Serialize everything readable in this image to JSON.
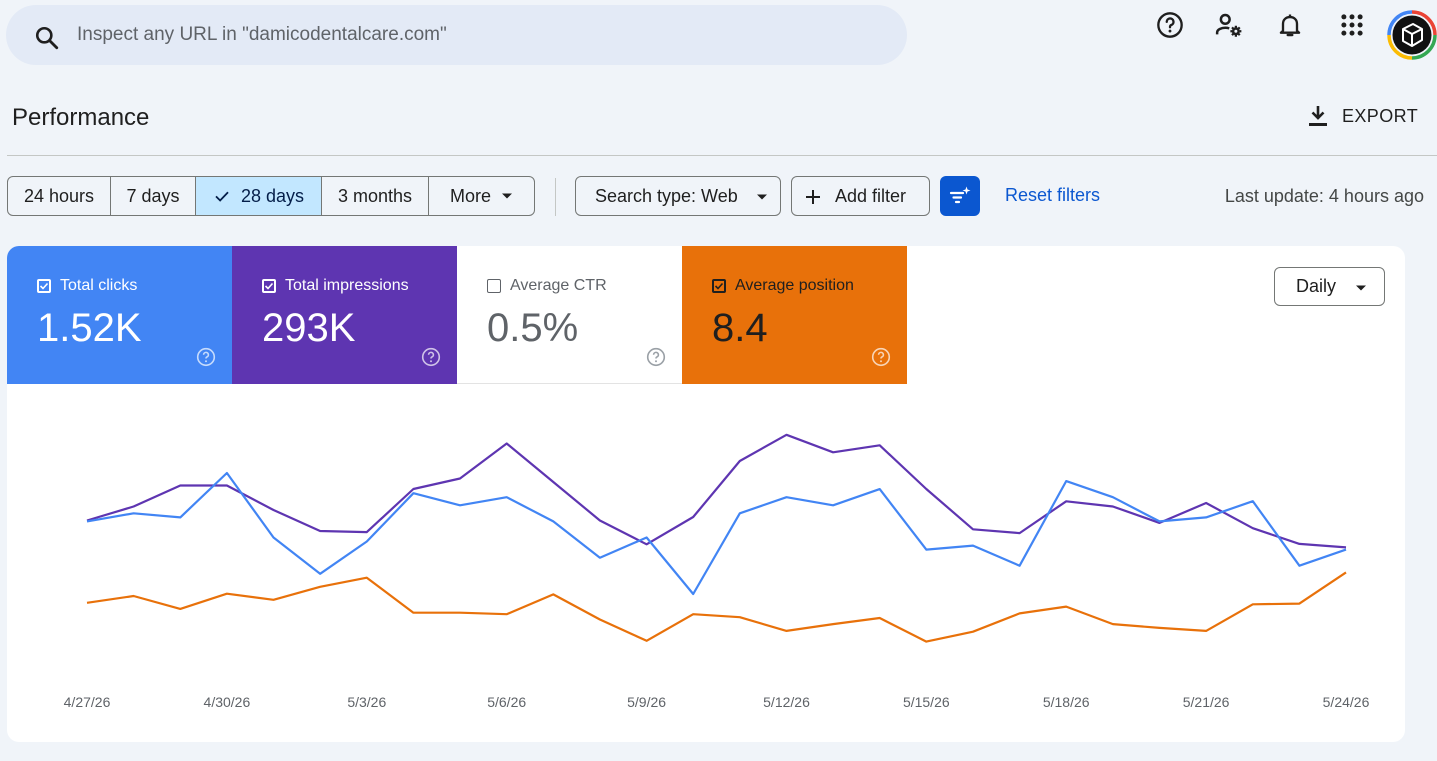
{
  "search": {
    "placeholder": "Inspect any URL in \"damicodentalcare.com\""
  },
  "topbar": {
    "icons": [
      "help-icon",
      "manage-users-icon",
      "notifications-icon",
      "apps-grid-icon",
      "account-avatar"
    ]
  },
  "header": {
    "title": "Performance",
    "export_label": "EXPORT"
  },
  "date_range": {
    "options": [
      "24 hours",
      "7 days",
      "28 days",
      "3 months",
      "More"
    ],
    "selected": "28 days"
  },
  "filters": {
    "search_type": "Search type: Web",
    "add_filter": "Add filter",
    "reset": "Reset filters",
    "last_update": "Last update: 4 hours ago"
  },
  "metrics": [
    {
      "label": "Total clicks",
      "value": "1.52K",
      "checked": true,
      "color": "#4285f4"
    },
    {
      "label": "Total impressions",
      "value": "293K",
      "checked": true,
      "color": "#5e35b1"
    },
    {
      "label": "Average CTR",
      "value": "0.5%",
      "checked": false,
      "color": "#00897b"
    },
    {
      "label": "Average position",
      "value": "8.4",
      "checked": true,
      "color": "#e8710a"
    }
  ],
  "granularity": {
    "selected": "Daily"
  },
  "chart_data": {
    "type": "line",
    "x": [
      "4/27/26",
      "4/28/26",
      "4/29/26",
      "4/30/26",
      "5/1/26",
      "5/2/26",
      "5/3/26",
      "5/4/26",
      "5/5/26",
      "5/6/26",
      "5/7/26",
      "5/8/26",
      "5/9/26",
      "5/10/26",
      "5/11/26",
      "5/12/26",
      "5/13/26",
      "5/14/26",
      "5/15/26",
      "5/16/26",
      "5/17/26",
      "5/18/26",
      "5/19/26",
      "5/20/26",
      "5/21/26",
      "5/22/26",
      "5/23/26",
      "5/24/26"
    ],
    "x_tick_labels": [
      "4/27/26",
      "4/30/26",
      "5/3/26",
      "5/6/26",
      "5/9/26",
      "5/12/26",
      "5/15/26",
      "5/18/26",
      "5/21/26",
      "5/24/26"
    ],
    "grid": false,
    "series": [
      {
        "name": "Total impressions",
        "color": "#5e35b1",
        "values": [
          10300,
          10700,
          11300,
          11300,
          10600,
          10000,
          9970,
          11200,
          11500,
          12500,
          11400,
          10300,
          9620,
          10400,
          12000,
          12750,
          12250,
          12450,
          11200,
          10050,
          9940,
          10850,
          10700,
          10230,
          10800,
          10080,
          9630,
          9530
        ]
      },
      {
        "name": "Total clicks",
        "color": "#4285f4",
        "values": [
          54,
          56,
          55,
          66,
          50,
          41,
          49,
          61,
          58,
          60,
          54,
          45,
          50,
          36,
          56,
          60,
          58,
          62,
          47,
          48,
          43,
          64,
          60,
          54,
          55,
          59,
          43,
          47
        ]
      },
      {
        "name": "Average position",
        "color": "#e8710a",
        "values": [
          8.4,
          8.58,
          8.24,
          8.64,
          8.48,
          8.82,
          9.06,
          8.14,
          8.14,
          8.1,
          8.62,
          7.96,
          7.4,
          8.1,
          8.02,
          7.66,
          7.84,
          8.0,
          7.38,
          7.64,
          8.12,
          8.3,
          7.84,
          7.74,
          7.66,
          8.36,
          8.38,
          9.2
        ]
      }
    ]
  }
}
